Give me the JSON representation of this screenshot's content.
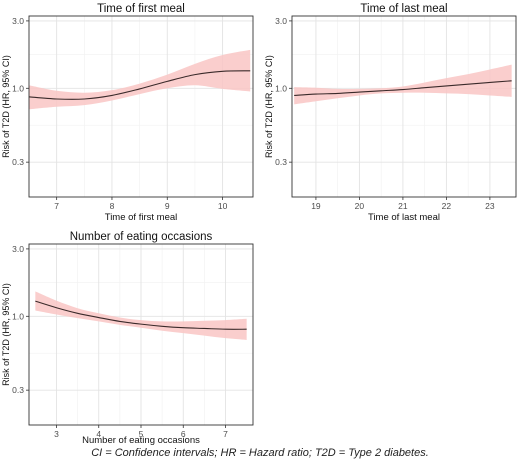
{
  "caption": "CI = Confidence intervals; HR = Hazard ratio; T2D = Type 2 diabetes.",
  "colors": {
    "line": "#3a2a2a",
    "band": "#f9c6c4",
    "grid_major": "#e3e3e3",
    "grid_minor": "#f1f1f1",
    "axis_text": "#4d4d4d"
  },
  "chart_data": [
    {
      "type": "line",
      "title": "Time of first meal",
      "xlabel": "Time of first meal",
      "ylabel": "Risk of T2D (HR, 95% CI)",
      "y_scale": "log",
      "xlim": [
        6.5,
        10.55
      ],
      "ylim": [
        0.17,
        3.25
      ],
      "xticks": [
        7,
        8,
        9,
        10
      ],
      "yticks": [
        0.3,
        1.0,
        3.0
      ],
      "ytick_labels": [
        "0.3",
        "1.0",
        "3.0"
      ],
      "grid": true,
      "series": [
        {
          "x": [
            6.5,
            7.0,
            7.5,
            8.0,
            8.5,
            9.0,
            9.5,
            10.0,
            10.5
          ],
          "y": [
            0.87,
            0.84,
            0.84,
            0.89,
            0.99,
            1.12,
            1.25,
            1.32,
            1.33
          ],
          "lower": [
            0.71,
            0.74,
            0.76,
            0.82,
            0.91,
            1.0,
            1.05,
            0.99,
            0.95
          ],
          "upper": [
            1.05,
            0.96,
            0.93,
            0.97,
            1.08,
            1.25,
            1.49,
            1.72,
            1.87
          ]
        }
      ]
    },
    {
      "type": "line",
      "title": "Time of last meal",
      "xlabel": "Time of last meal",
      "ylabel": "Risk of T2D (HR, 95% CI)",
      "y_scale": "log",
      "xlim": [
        18.45,
        23.6
      ],
      "ylim": [
        0.17,
        3.25
      ],
      "xticks": [
        19,
        20,
        21,
        22,
        23
      ],
      "yticks": [
        0.3,
        1.0,
        3.0
      ],
      "ytick_labels": [
        "0.3",
        "1.0",
        "3.0"
      ],
      "grid": true,
      "series": [
        {
          "x": [
            18.5,
            19.0,
            19.5,
            20.0,
            20.5,
            21.0,
            21.5,
            22.0,
            22.5,
            23.0,
            23.5
          ],
          "y": [
            0.89,
            0.91,
            0.92,
            0.94,
            0.96,
            0.98,
            1.01,
            1.04,
            1.07,
            1.1,
            1.13
          ],
          "lower": [
            0.77,
            0.81,
            0.85,
            0.89,
            0.92,
            0.93,
            0.93,
            0.92,
            0.91,
            0.89,
            0.87
          ],
          "upper": [
            1.02,
            1.01,
            0.99,
            0.99,
            1.0,
            1.03,
            1.1,
            1.18,
            1.26,
            1.36,
            1.47
          ]
        }
      ]
    },
    {
      "type": "line",
      "title": "Number of eating occasions",
      "xlabel": "Number of eating occasions",
      "ylabel": "Risk of T2D (HR, 95% CI)",
      "y_scale": "log",
      "xlim": [
        2.35,
        7.65
      ],
      "ylim": [
        0.17,
        3.25
      ],
      "xticks": [
        3,
        4,
        5,
        6,
        7
      ],
      "yticks": [
        0.3,
        1.0,
        3.0
      ],
      "ytick_labels": [
        "0.3",
        "1.0",
        "3.0"
      ],
      "grid": true,
      "series": [
        {
          "x": [
            2.5,
            3.0,
            3.5,
            4.0,
            4.5,
            5.0,
            5.5,
            6.0,
            6.5,
            7.0,
            7.5
          ],
          "y": [
            1.28,
            1.15,
            1.05,
            0.98,
            0.92,
            0.88,
            0.85,
            0.83,
            0.82,
            0.81,
            0.81
          ],
          "lower": [
            1.1,
            1.03,
            0.97,
            0.92,
            0.87,
            0.83,
            0.79,
            0.76,
            0.73,
            0.7,
            0.68
          ],
          "upper": [
            1.5,
            1.29,
            1.14,
            1.05,
            0.98,
            0.94,
            0.92,
            0.92,
            0.93,
            0.94,
            0.96
          ]
        }
      ]
    }
  ]
}
